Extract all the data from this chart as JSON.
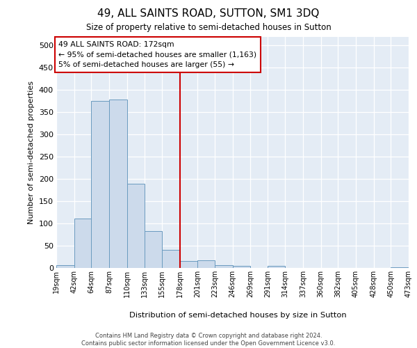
{
  "title": "49, ALL SAINTS ROAD, SUTTON, SM1 3DQ",
  "subtitle": "Size of property relative to semi-detached houses in Sutton",
  "xlabel": "Distribution of semi-detached houses by size in Sutton",
  "ylabel": "Number of semi-detached properties",
  "bar_color": "#ccdaeb",
  "bar_edge_color": "#6a9abf",
  "background_color": "#e4ecf5",
  "grid_color": "#ffffff",
  "property_line_color": "#cc0000",
  "annotation_box_edgecolor": "#cc0000",
  "annotation_title": "49 ALL SAINTS ROAD: 172sqm",
  "annotation_line1": "← 95% of semi-detached houses are smaller (1,163)",
  "annotation_line2": "5% of semi-detached houses are larger (55) →",
  "footer_line1": "Contains HM Land Registry data © Crown copyright and database right 2024.",
  "footer_line2": "Contains public sector information licensed under the Open Government Licence v3.0.",
  "bin_edges": [
    19,
    42,
    64,
    87,
    110,
    133,
    155,
    178,
    201,
    223,
    246,
    269,
    291,
    314,
    337,
    360,
    382,
    405,
    428,
    450,
    473
  ],
  "bin_labels": [
    "19sqm",
    "42sqm",
    "64sqm",
    "87sqm",
    "110sqm",
    "133sqm",
    "155sqm",
    "178sqm",
    "201sqm",
    "223sqm",
    "246sqm",
    "269sqm",
    "291sqm",
    "314sqm",
    "337sqm",
    "360sqm",
    "382sqm",
    "405sqm",
    "428sqm",
    "450sqm",
    "473sqm"
  ],
  "bar_heights": [
    7,
    111,
    376,
    378,
    190,
    83,
    40,
    16,
    17,
    6,
    4,
    0,
    4,
    0,
    0,
    0,
    0,
    0,
    0,
    2
  ],
  "property_line_x": 178,
  "xlim_min": 19,
  "xlim_max": 473,
  "ylim_min": 0,
  "ylim_max": 520,
  "yticks": [
    0,
    50,
    100,
    150,
    200,
    250,
    300,
    350,
    400,
    450,
    500
  ]
}
